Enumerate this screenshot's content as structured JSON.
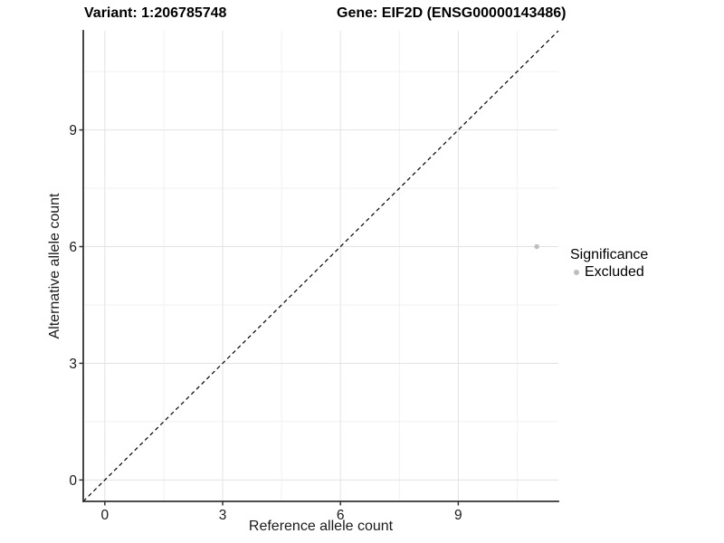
{
  "chart_data": {
    "type": "scatter",
    "title_left": "Variant: 1:206785748",
    "title_right": "Gene: EIF2D (ENSG00000143486)",
    "xlabel": "Reference allele count",
    "ylabel": "Alternative allele count",
    "xlim": [
      -0.55,
      11.55
    ],
    "ylim": [
      -0.55,
      11.55
    ],
    "x_ticks": [
      0,
      3,
      6,
      9
    ],
    "y_ticks": [
      0,
      3,
      6,
      9
    ],
    "x_minor_ticks": [
      1.5,
      4.5,
      7.5,
      10.5
    ],
    "y_minor_ticks": [
      1.5,
      4.5,
      7.5,
      10.5
    ],
    "grid": true,
    "reference_line": {
      "type": "identity",
      "style": "dashed",
      "color": "#000000"
    },
    "series": [
      {
        "name": "Excluded",
        "color": "#bdbdbd",
        "points": [
          {
            "x": 11,
            "y": 6
          }
        ]
      }
    ],
    "legend": {
      "title": "Significance",
      "position": "right",
      "items": [
        {
          "label": "Excluded",
          "color": "#bdbdbd"
        }
      ]
    },
    "colors": {
      "grid_major": "#e3e3e3",
      "grid_minor": "#f1f1f1",
      "axis_line": "#333333",
      "tick_text": "#1a1a1a",
      "point": "#bdbdbd",
      "dashed_line": "#000000",
      "background": "#ffffff"
    }
  }
}
